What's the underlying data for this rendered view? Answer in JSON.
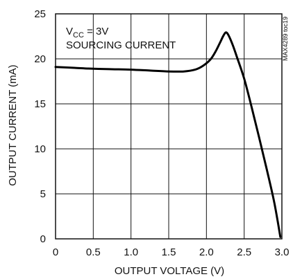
{
  "chart_data": {
    "type": "line",
    "title": "",
    "xlabel": "OUTPUT VOLTAGE (V)",
    "ylabel": "OUTPUT CURRENT (mA)",
    "xlim": [
      0,
      3.0
    ],
    "ylim": [
      0,
      25
    ],
    "x_ticks": [
      "0",
      "0.5",
      "1.0",
      "1.5",
      "2.0",
      "2.5",
      "3.0"
    ],
    "y_ticks": [
      "0",
      "5",
      "10",
      "15",
      "20",
      "25"
    ],
    "grid": true,
    "annotations": {
      "condition_prefix": "V",
      "condition_sub": "CC",
      "condition_value": " = 3V",
      "mode": "SOURCING CURRENT",
      "figure_id": "MAX4289 toc19"
    },
    "series": [
      {
        "x": [
          0.0,
          0.25,
          0.5,
          0.75,
          1.0,
          1.25,
          1.5,
          1.7,
          1.85,
          1.95,
          2.05,
          2.12,
          2.18,
          2.22,
          2.25,
          2.27,
          2.3,
          2.35,
          2.4,
          2.5,
          2.6,
          2.7,
          2.8,
          2.9,
          2.98
        ],
        "y": [
          19.1,
          19.0,
          18.9,
          18.85,
          18.8,
          18.7,
          18.6,
          18.6,
          18.8,
          19.2,
          19.9,
          20.8,
          21.8,
          22.5,
          22.9,
          22.9,
          22.5,
          21.5,
          20.3,
          17.8,
          14.6,
          11.2,
          7.7,
          4.0,
          0.2
        ]
      }
    ]
  }
}
